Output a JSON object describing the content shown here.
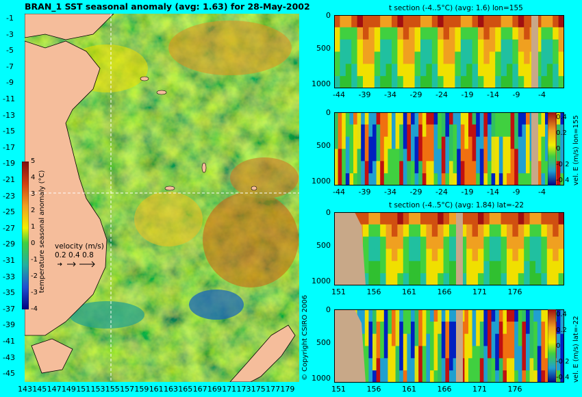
{
  "map": {
    "title": "BRAN_1 SST seasonal anomaly (avg: 1.63) for 28-May-2002",
    "lat_ticks": [
      "-1",
      "-3",
      "-5",
      "-7",
      "-9",
      "-11",
      "-13",
      "-15",
      "-17",
      "-19",
      "-21",
      "-23",
      "-25",
      "-27",
      "-29",
      "-31",
      "-33",
      "-35",
      "-37",
      "-39",
      "-41",
      "-43",
      "-45"
    ],
    "lon_ticks": [
      "143",
      "145",
      "147",
      "149",
      "151",
      "153",
      "155",
      "157",
      "159",
      "161",
      "163",
      "165",
      "167",
      "169",
      "171",
      "173",
      "175",
      "177",
      "179"
    ],
    "colorbar_label": "temperature seasonal anomaly (°C)",
    "colorbar_ticks": [
      "5",
      "4",
      "3",
      "2",
      "1",
      "0",
      "-1",
      "-2",
      "-3",
      "-4"
    ],
    "velocity_label": "velocity (m/s)",
    "velocity_scale": "0.2 0.4 0.8",
    "crosshair": {
      "lon": 155,
      "lat": -22
    },
    "colors": {
      "warm": "#d05010",
      "hot": "#a01010",
      "neutral_yellow": "#f0e000",
      "green": "#20c040",
      "cool": "#0040c0",
      "land": "#f5bd9b",
      "background": "#00ffff"
    }
  },
  "panels": [
    {
      "title": "t section (-4..5°C) (avg: 1.6) lon=155",
      "x_ticks": [
        "-44",
        "-39",
        "-34",
        "-29",
        "-24",
        "-19",
        "-14",
        "-9",
        "-4"
      ],
      "y_ticks": [
        "0",
        "500",
        "1000"
      ],
      "colorbar": null
    },
    {
      "title": "",
      "x_ticks": [
        "-44",
        "-39",
        "-34",
        "-29",
        "-24",
        "-19",
        "-14",
        "-9",
        "-4"
      ],
      "y_ticks": [
        "0",
        "500",
        "1000"
      ],
      "colorbar": {
        "label": "vel. E (m/s) lon=155",
        "ticks": [
          "0.4",
          "0.2",
          "0",
          "-0.2",
          "-0.4"
        ]
      }
    },
    {
      "title": "t section (-4..5°C) (avg: 1.84) lat=-22",
      "x_ticks": [
        "151",
        "156",
        "161",
        "166",
        "171",
        "176"
      ],
      "y_ticks": [
        "0",
        "500",
        "1000"
      ],
      "colorbar": null
    },
    {
      "title": "",
      "x_ticks": [
        "151",
        "156",
        "161",
        "166",
        "171",
        "176"
      ],
      "y_ticks": [
        "0",
        "500",
        "1000"
      ],
      "colorbar": {
        "label": "vel. E (m/s) lat=-22",
        "ticks": [
          "0.4",
          "0.2",
          "0",
          "-0.2",
          "-0.4"
        ]
      }
    }
  ],
  "copyright": "© Copyright CSIRO 2006",
  "chart_data": [
    {
      "type": "heatmap",
      "title": "BRAN_1 SST seasonal anomaly (avg: 1.63) for 28-May-2002",
      "xlabel": "",
      "ylabel": "",
      "xlim": [
        143,
        180
      ],
      "ylim": [
        -45,
        0
      ],
      "colorbar": {
        "label": "temperature seasonal anomaly (°C)",
        "range": [
          -4,
          5
        ]
      },
      "mean": 1.63
    },
    {
      "type": "heatmap",
      "title": "t section (-4..5°C) (avg: 1.6) lon=155",
      "xlim": [
        -45,
        0
      ],
      "ylim": [
        1050,
        0
      ],
      "mean": 1.6
    },
    {
      "type": "heatmap",
      "title": "",
      "colorbar": {
        "label": "vel. E (m/s) lon=155",
        "range": [
          -0.4,
          0.4
        ]
      },
      "xlim": [
        -45,
        0
      ],
      "ylim": [
        1050,
        0
      ]
    },
    {
      "type": "heatmap",
      "title": "t section (-4..5°C) (avg: 1.84) lat=-22",
      "xlim": [
        150,
        180
      ],
      "ylim": [
        1050,
        0
      ],
      "mean": 1.84
    },
    {
      "type": "heatmap",
      "title": "",
      "colorbar": {
        "label": "vel. E (m/s) lat=-22",
        "range": [
          -0.4,
          0.4
        ]
      },
      "xlim": [
        150,
        180
      ],
      "ylim": [
        1050,
        0
      ]
    }
  ]
}
